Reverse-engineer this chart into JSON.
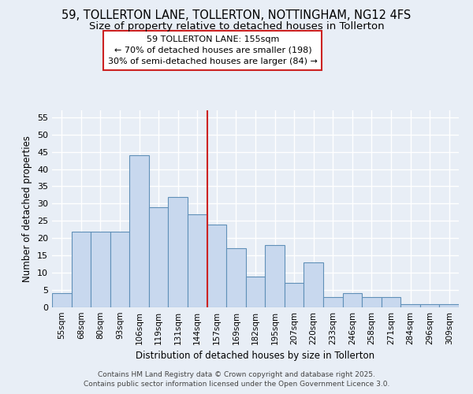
{
  "title": "59, TOLLERTON LANE, TOLLERTON, NOTTINGHAM, NG12 4FS",
  "subtitle": "Size of property relative to detached houses in Tollerton",
  "xlabel": "Distribution of detached houses by size in Tollerton",
  "ylabel": "Number of detached properties",
  "categories": [
    "55sqm",
    "68sqm",
    "80sqm",
    "93sqm",
    "106sqm",
    "119sqm",
    "131sqm",
    "144sqm",
    "157sqm",
    "169sqm",
    "182sqm",
    "195sqm",
    "207sqm",
    "220sqm",
    "233sqm",
    "246sqm",
    "258sqm",
    "271sqm",
    "284sqm",
    "296sqm",
    "309sqm"
  ],
  "values": [
    4,
    22,
    22,
    22,
    44,
    29,
    32,
    27,
    24,
    17,
    9,
    18,
    7,
    13,
    3,
    4,
    3,
    3,
    1,
    1,
    1
  ],
  "bar_color": "#c8d8ee",
  "bar_edge_color": "#6090b8",
  "background_color": "#e8eef6",
  "grid_color": "#ffffff",
  "vline_index": 8,
  "vline_color": "#cc2222",
  "annotation_text_line1": "59 TOLLERTON LANE: 155sqm",
  "annotation_text_line2": "← 70% of detached houses are smaller (198)",
  "annotation_text_line3": "30% of semi-detached houses are larger (84) →",
  "ylim": [
    0,
    57
  ],
  "yticks": [
    0,
    5,
    10,
    15,
    20,
    25,
    30,
    35,
    40,
    45,
    50,
    55
  ],
  "footer_line1": "Contains HM Land Registry data © Crown copyright and database right 2025.",
  "footer_line2": "Contains public sector information licensed under the Open Government Licence 3.0.",
  "title_fontsize": 10.5,
  "subtitle_fontsize": 9.5,
  "tick_fontsize": 7.5,
  "ylabel_fontsize": 8.5,
  "xlabel_fontsize": 8.5,
  "annotation_fontsize": 8.0,
  "footer_fontsize": 6.5
}
